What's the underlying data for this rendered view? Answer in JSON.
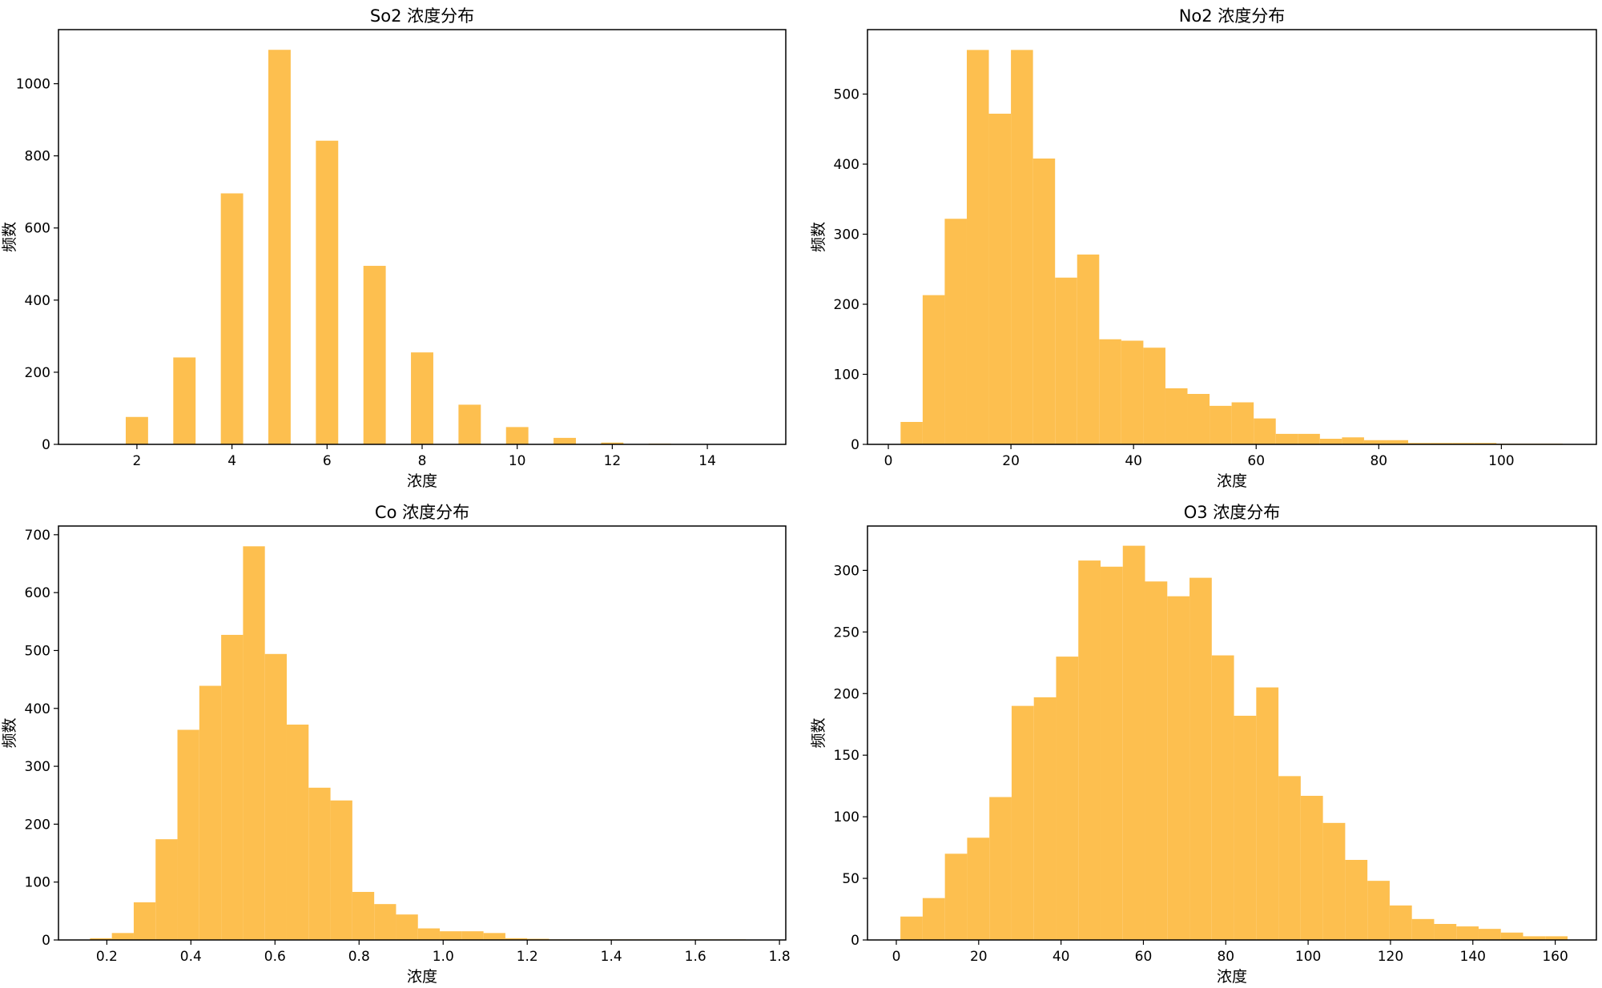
{
  "chart_data": [
    {
      "type": "bar",
      "title": "So2 浓度分布",
      "xlabel": "浓度",
      "ylabel": "频数",
      "xlim": [
        0.35,
        15.65
      ],
      "ylim": [
        0,
        1150
      ],
      "xticks": [
        2,
        4,
        6,
        8,
        10,
        12,
        14
      ],
      "yticks": [
        0,
        200,
        400,
        600,
        800,
        1000
      ],
      "bin_width": 0.47,
      "x": [
        2,
        3,
        4,
        5,
        6,
        7,
        8,
        9,
        10,
        11,
        12,
        13,
        14
      ],
      "values": [
        76,
        241,
        696,
        1094,
        842,
        495,
        255,
        110,
        48,
        18,
        5,
        2,
        1
      ],
      "color": "#fdbf4f",
      "grid": false
    },
    {
      "type": "bar",
      "title": "No2 浓度分布",
      "xlabel": "浓度",
      "ylabel": "频数",
      "xlim": [
        -3.4,
        115.5
      ],
      "ylim": [
        0,
        592
      ],
      "xticks": [
        0,
        20,
        40,
        60,
        80,
        100
      ],
      "yticks": [
        0,
        100,
        200,
        300,
        400,
        500
      ],
      "bin_edges": [
        2,
        5.6,
        9.2,
        12.8,
        16.4,
        20,
        23.6,
        27.2,
        30.8,
        34.4,
        38,
        41.6,
        45.2,
        48.8,
        52.4,
        56,
        59.6,
        63.2,
        66.8,
        70.4,
        74,
        77.6,
        81.2,
        84.8,
        88.4,
        92,
        95.6,
        99.2,
        102.8,
        106.4,
        110
      ],
      "values": [
        32,
        213,
        322,
        563,
        472,
        563,
        408,
        238,
        271,
        150,
        148,
        138,
        80,
        72,
        55,
        60,
        37,
        15,
        15,
        8,
        10,
        6,
        6,
        2,
        2,
        2,
        2,
        1,
        1,
        1
      ],
      "color": "#fdbf4f",
      "grid": false
    },
    {
      "type": "bar",
      "title": "Co 浓度分布",
      "xlabel": "浓度",
      "ylabel": "频数",
      "xlim": [
        0.085,
        1.815
      ],
      "ylim": [
        0,
        715
      ],
      "xticks": [
        0.2,
        0.4,
        0.6,
        0.8,
        1.0,
        1.2,
        1.4,
        1.6,
        1.8
      ],
      "yticks": [
        0,
        100,
        200,
        300,
        400,
        500,
        600,
        700
      ],
      "bin_edges": [
        0.16,
        0.212,
        0.264,
        0.316,
        0.368,
        0.42,
        0.472,
        0.524,
        0.576,
        0.628,
        0.68,
        0.732,
        0.784,
        0.836,
        0.888,
        0.94,
        0.992,
        1.044,
        1.096,
        1.148,
        1.2,
        1.252,
        1.304,
        1.356,
        1.408,
        1.46,
        1.512,
        1.564,
        1.616,
        1.668,
        1.72
      ],
      "values": [
        3,
        12,
        65,
        174,
        363,
        439,
        527,
        680,
        494,
        372,
        263,
        241,
        83,
        62,
        44,
        20,
        15,
        15,
        12,
        3,
        2,
        1,
        1,
        1,
        1,
        1,
        1,
        1,
        1,
        1
      ],
      "color": "#fdbf4f",
      "grid": false
    },
    {
      "type": "bar",
      "title": "O3 浓度分布",
      "xlabel": "浓度",
      "ylabel": "频数",
      "xlim": [
        -7,
        170
      ],
      "ylim": [
        0,
        336
      ],
      "xticks": [
        0,
        20,
        40,
        60,
        80,
        100,
        120,
        140,
        160
      ],
      "yticks": [
        0,
        50,
        100,
        150,
        200,
        250,
        300
      ],
      "bin_edges": [
        1,
        6.4,
        11.8,
        17.2,
        22.6,
        28,
        33.4,
        38.8,
        44.2,
        49.6,
        55,
        60.4,
        65.8,
        71.2,
        76.6,
        82,
        87.4,
        92.8,
        98.2,
        103.6,
        109,
        114.4,
        119.8,
        125.2,
        130.6,
        136,
        141.4,
        146.8,
        152.2,
        157.6,
        163
      ],
      "values": [
        19,
        34,
        70,
        83,
        116,
        190,
        197,
        230,
        308,
        303,
        320,
        291,
        279,
        294,
        231,
        182,
        205,
        133,
        117,
        95,
        65,
        48,
        28,
        17,
        13,
        11,
        9,
        6,
        3,
        3
      ],
      "color": "#fdbf4f",
      "grid": false
    }
  ]
}
